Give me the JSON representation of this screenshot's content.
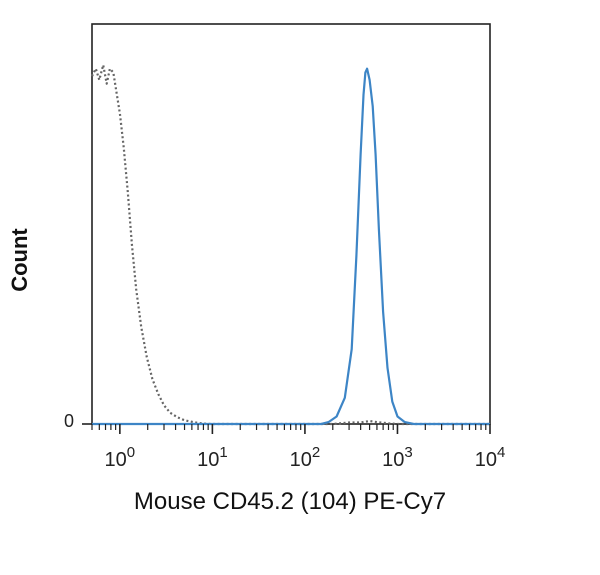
{
  "chart_data": {
    "type": "line",
    "title": "",
    "xlabel": "Mouse CD45.2 (104) PE-Cy7",
    "ylabel": "Count",
    "x_scale": "log",
    "x_range": [
      0.5,
      10000
    ],
    "y_range": [
      0,
      100
    ],
    "grid": false,
    "x_tick_labels": [
      {
        "base": "10",
        "exp": "0",
        "value": 1
      },
      {
        "base": "10",
        "exp": "1",
        "value": 10
      },
      {
        "base": "10",
        "exp": "2",
        "value": 100
      },
      {
        "base": "10",
        "exp": "3",
        "value": 1000
      },
      {
        "base": "10",
        "exp": "4",
        "value": 10000
      }
    ],
    "y_tick_labels": [
      {
        "label": "0",
        "value": 0
      }
    ],
    "series": [
      {
        "style": "dotted",
        "color": "#666666",
        "points": [
          [
            0.5,
            93
          ],
          [
            0.55,
            95
          ],
          [
            0.6,
            92
          ],
          [
            0.66,
            96
          ],
          [
            0.72,
            91
          ],
          [
            0.78,
            95
          ],
          [
            0.85,
            94
          ],
          [
            0.93,
            88
          ],
          [
            1.0,
            83
          ],
          [
            1.1,
            74
          ],
          [
            1.22,
            62
          ],
          [
            1.35,
            48
          ],
          [
            1.5,
            36
          ],
          [
            1.7,
            26
          ],
          [
            1.95,
            18
          ],
          [
            2.25,
            12
          ],
          [
            2.6,
            8
          ],
          [
            3.0,
            5
          ],
          [
            3.5,
            3
          ],
          [
            4.2,
            1.8
          ],
          [
            5.0,
            1
          ],
          [
            6.5,
            0.4
          ],
          [
            8.0,
            0.1
          ],
          [
            10.0,
            0
          ],
          [
            100,
            0
          ],
          [
            200,
            0
          ],
          [
            300,
            0.4
          ],
          [
            400,
            0.4
          ],
          [
            500,
            0.8
          ],
          [
            600,
            0.5
          ],
          [
            800,
            0.2
          ],
          [
            1000,
            0
          ],
          [
            10000,
            0
          ]
        ]
      },
      {
        "style": "solid",
        "color": "#3d85c6",
        "points": [
          [
            0.5,
            0
          ],
          [
            150,
            0
          ],
          [
            180,
            0.5
          ],
          [
            220,
            2
          ],
          [
            270,
            7
          ],
          [
            320,
            20
          ],
          [
            360,
            45
          ],
          [
            400,
            72
          ],
          [
            430,
            88
          ],
          [
            450,
            94
          ],
          [
            470,
            95
          ],
          [
            500,
            92
          ],
          [
            540,
            85
          ],
          [
            580,
            72
          ],
          [
            630,
            52
          ],
          [
            700,
            30
          ],
          [
            780,
            15
          ],
          [
            880,
            6
          ],
          [
            1000,
            2
          ],
          [
            1200,
            0.5
          ],
          [
            1500,
            0
          ],
          [
            10000,
            0
          ]
        ]
      }
    ]
  }
}
